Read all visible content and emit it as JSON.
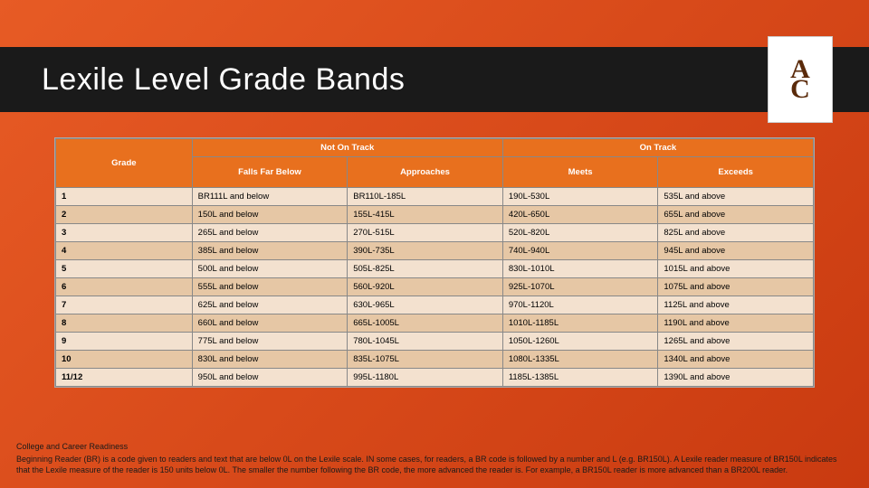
{
  "title": "Lexile Level Grade Bands",
  "logo": {
    "letters": [
      "A",
      "C"
    ],
    "text_color": "#5a2a0a",
    "bg": "#ffffff"
  },
  "colors": {
    "slide_gradient_start": "#e75b25",
    "slide_gradient_end": "#c93a10",
    "title_bar_bg": "#1a1a1a",
    "header_bg": "#e8701e",
    "row_light": "#f3e1cf",
    "row_dark": "#e6c7a5",
    "border": "#888888"
  },
  "table": {
    "top_headers": [
      {
        "label": "Grade",
        "colspan": 1,
        "rowspan": 2
      },
      {
        "label": "Not On Track",
        "colspan": 2,
        "rowspan": 1
      },
      {
        "label": "On Track",
        "colspan": 2,
        "rowspan": 1
      }
    ],
    "sub_headers": [
      "Falls Far Below",
      "Approaches",
      "Meets",
      "Exceeds"
    ],
    "rows": [
      [
        "1",
        "BR111L and below",
        "BR110L-185L",
        "190L-530L",
        "535L and above"
      ],
      [
        "2",
        "150L and below",
        "155L-415L",
        "420L-650L",
        "655L and above"
      ],
      [
        "3",
        "265L and below",
        "270L-515L",
        "520L-820L",
        "825L and above"
      ],
      [
        "4",
        "385L and below",
        "390L-735L",
        "740L-940L",
        "945L and above"
      ],
      [
        "5",
        "500L and below",
        "505L-825L",
        "830L-1010L",
        "1015L and above"
      ],
      [
        "6",
        "555L and below",
        "560L-920L",
        "925L-1070L",
        "1075L and above"
      ],
      [
        "7",
        "625L and below",
        "630L-965L",
        "970L-1120L",
        "1125L and above"
      ],
      [
        "8",
        "660L and below",
        "665L-1005L",
        "1010L-1185L",
        "1190L and above"
      ],
      [
        "9",
        "775L and below",
        "780L-1045L",
        "1050L-1260L",
        "1265L and above"
      ],
      [
        "10",
        "830L and below",
        "835L-1075L",
        "1080L-1335L",
        "1340L and above"
      ],
      [
        "11/12",
        "950L and below",
        "995L-1180L",
        "1185L-1385L",
        "1390L and above"
      ]
    ]
  },
  "footer": {
    "heading": "College and Career Readiness",
    "body": "Beginning Reader (BR) is a code given to readers and text that are below 0L on the Lexile scale. IN some cases, for readers, a BR code is followed by a number and L (e.g. BR150L). A Lexile reader measure of BR150L indicates that the Lexile measure of the reader is 150 units below 0L. The smaller the number following the BR code, the more advanced the reader is. For example, a BR150L reader is more advanced than a BR200L reader."
  }
}
